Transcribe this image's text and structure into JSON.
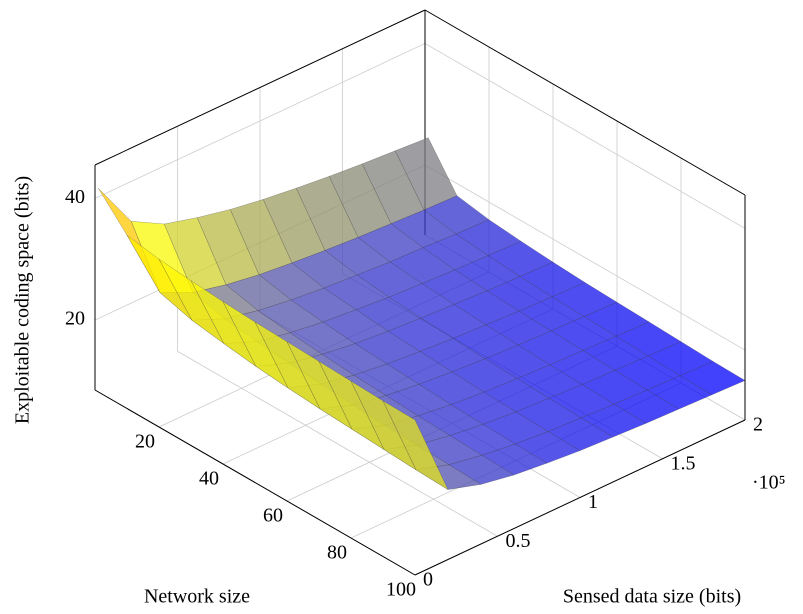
{
  "chart_data": {
    "type": "surface",
    "xlabel": "Network size",
    "ylabel": "Sensed data size (bits)",
    "zlabel": "Exploitable coding space (bits)",
    "y_scale_label": "·10⁵",
    "x": [
      1,
      10,
      20,
      30,
      40,
      50,
      60,
      70,
      80,
      90,
      100
    ],
    "y": [
      0,
      20000,
      40000,
      60000,
      80000,
      100000,
      120000,
      140000,
      160000,
      180000,
      200000
    ],
    "z": [
      [
        42,
        37,
        36.1,
        35.6,
        35.2,
        34.9,
        34.7,
        34.5,
        34.3,
        34.1,
        34
      ],
      [
        34,
        25,
        23.5,
        22.7,
        22,
        21.5,
        21.1,
        20.8,
        20.5,
        20.2,
        20
      ],
      [
        31,
        22.5,
        21.2,
        20.5,
        20,
        19.6,
        19.2,
        18.9,
        18.7,
        18.5,
        18.3
      ],
      [
        29.5,
        21.2,
        20,
        19.4,
        18.9,
        18.5,
        18.2,
        17.9,
        17.7,
        17.5,
        17.3
      ],
      [
        28.3,
        20.3,
        19.2,
        18.6,
        18.1,
        17.8,
        17.5,
        17.2,
        17,
        16.8,
        16.7
      ],
      [
        27.4,
        19.7,
        18.6,
        18.1,
        17.6,
        17.3,
        17,
        16.7,
        16.5,
        16.3,
        16.2
      ],
      [
        26.7,
        19.2,
        18.2,
        17.6,
        17.2,
        16.9,
        16.6,
        16.4,
        16.2,
        16,
        15.9
      ],
      [
        26.1,
        18.8,
        17.8,
        17.3,
        16.9,
        16.6,
        16.3,
        16.1,
        15.9,
        15.7,
        15.6
      ],
      [
        25.6,
        18.5,
        17.6,
        17,
        16.6,
        16.3,
        16.1,
        15.9,
        15.7,
        15.5,
        15.4
      ],
      [
        25.2,
        18.2,
        17.3,
        16.8,
        16.4,
        16.1,
        15.9,
        15.7,
        15.5,
        15.3,
        15.2
      ],
      [
        24.8,
        18,
        17.1,
        16.6,
        16.2,
        15.9,
        15.7,
        15.5,
        15.3,
        15.1,
        15
      ]
    ],
    "xlim": [
      0,
      100
    ],
    "ylim": [
      0,
      200000
    ],
    "zlim": [
      8.5,
      45.5
    ],
    "xticks": [
      20,
      40,
      60,
      80,
      100
    ],
    "yticks": [
      {
        "value": 0,
        "label": "0"
      },
      {
        "value": 50000,
        "label": "0.5"
      },
      {
        "value": 100000,
        "label": "1"
      },
      {
        "value": 150000,
        "label": "1.5"
      },
      {
        "value": 200000,
        "label": "2"
      }
    ],
    "zticks": [
      20,
      40
    ],
    "grid": true,
    "colormap": [
      "#0000ff",
      "#ffff00",
      "#ff8000"
    ],
    "opacity": 0.75
  }
}
